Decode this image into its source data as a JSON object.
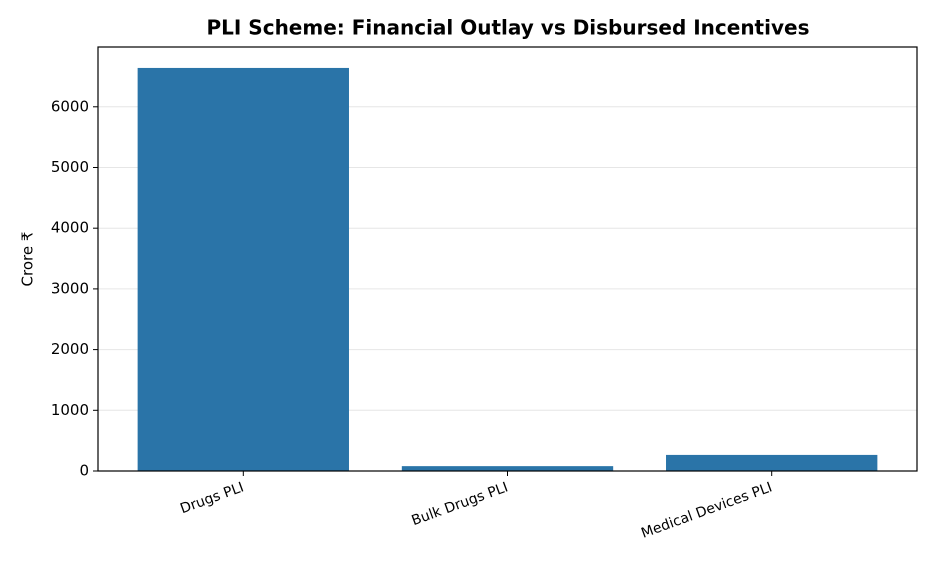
{
  "chart_data": {
    "type": "bar",
    "title": "PLI Scheme: Financial Outlay vs Disbursed Incentives",
    "y_label": "Crore ₹",
    "categories": [
      "Drugs PLI",
      "Bulk Drugs PLI",
      "Medical Devices PLI"
    ],
    "values": [
      6640,
      80,
      265
    ],
    "color": "#2a74a8",
    "ylim": [
      0,
      6985
    ],
    "yticks": [
      0,
      1000,
      2000,
      3000,
      4000,
      5000,
      6000
    ],
    "grid": true
  }
}
